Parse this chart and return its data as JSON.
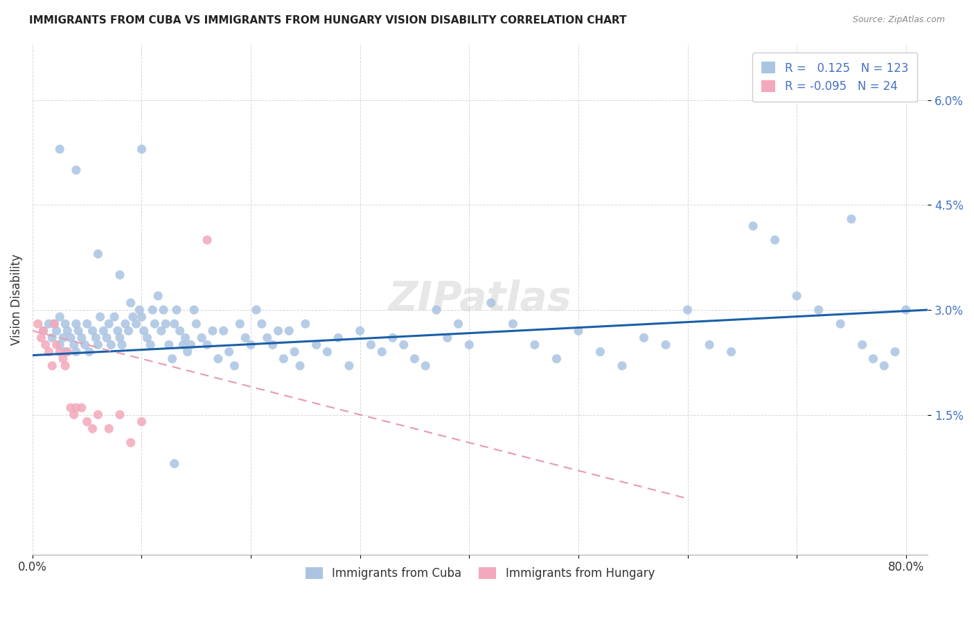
{
  "title": "IMMIGRANTS FROM CUBA VS IMMIGRANTS FROM HUNGARY VISION DISABILITY CORRELATION CHART",
  "source": "Source: ZipAtlas.com",
  "ylabel": "Vision Disability",
  "ytick_labels": [
    "1.5%",
    "3.0%",
    "4.5%",
    "6.0%"
  ],
  "ytick_values": [
    0.015,
    0.03,
    0.045,
    0.06
  ],
  "xlim": [
    0.0,
    0.82
  ],
  "ylim": [
    -0.005,
    0.068
  ],
  "legend_r_cuba": "0.125",
  "legend_n_cuba": "123",
  "legend_r_hungary": "-0.095",
  "legend_n_hungary": "24",
  "cuba_color": "#aac4e2",
  "hungary_color": "#f4a8bb",
  "cuba_line_color": "#1a5fa8",
  "hungary_line_color": "#e899aa",
  "watermark": "ZIPatlas",
  "cuba_scatter_x": [
    0.01,
    0.015,
    0.018,
    0.02,
    0.022,
    0.025,
    0.025,
    0.028,
    0.03,
    0.03,
    0.032,
    0.035,
    0.038,
    0.04,
    0.04,
    0.042,
    0.045,
    0.048,
    0.05,
    0.052,
    0.055,
    0.058,
    0.06,
    0.062,
    0.065,
    0.068,
    0.07,
    0.072,
    0.075,
    0.078,
    0.08,
    0.082,
    0.085,
    0.088,
    0.09,
    0.092,
    0.095,
    0.098,
    0.1,
    0.102,
    0.105,
    0.108,
    0.11,
    0.112,
    0.115,
    0.118,
    0.12,
    0.122,
    0.125,
    0.128,
    0.13,
    0.132,
    0.135,
    0.138,
    0.14,
    0.142,
    0.145,
    0.148,
    0.15,
    0.155,
    0.16,
    0.165,
    0.17,
    0.175,
    0.18,
    0.185,
    0.19,
    0.195,
    0.2,
    0.205,
    0.21,
    0.215,
    0.22,
    0.225,
    0.23,
    0.235,
    0.24,
    0.245,
    0.25,
    0.26,
    0.27,
    0.28,
    0.29,
    0.3,
    0.31,
    0.32,
    0.33,
    0.34,
    0.35,
    0.36,
    0.37,
    0.38,
    0.39,
    0.4,
    0.42,
    0.44,
    0.46,
    0.48,
    0.5,
    0.52,
    0.54,
    0.56,
    0.58,
    0.6,
    0.62,
    0.64,
    0.66,
    0.68,
    0.7,
    0.72,
    0.74,
    0.75,
    0.76,
    0.77,
    0.78,
    0.79,
    0.8,
    0.025,
    0.04,
    0.06,
    0.08,
    0.1,
    0.13
  ],
  "cuba_scatter_y": [
    0.027,
    0.028,
    0.026,
    0.028,
    0.027,
    0.029,
    0.025,
    0.026,
    0.028,
    0.024,
    0.027,
    0.026,
    0.025,
    0.028,
    0.024,
    0.027,
    0.026,
    0.025,
    0.028,
    0.024,
    0.027,
    0.026,
    0.025,
    0.029,
    0.027,
    0.026,
    0.028,
    0.025,
    0.029,
    0.027,
    0.026,
    0.025,
    0.028,
    0.027,
    0.031,
    0.029,
    0.028,
    0.03,
    0.029,
    0.027,
    0.026,
    0.025,
    0.03,
    0.028,
    0.032,
    0.027,
    0.03,
    0.028,
    0.025,
    0.023,
    0.028,
    0.03,
    0.027,
    0.025,
    0.026,
    0.024,
    0.025,
    0.03,
    0.028,
    0.026,
    0.025,
    0.027,
    0.023,
    0.027,
    0.024,
    0.022,
    0.028,
    0.026,
    0.025,
    0.03,
    0.028,
    0.026,
    0.025,
    0.027,
    0.023,
    0.027,
    0.024,
    0.022,
    0.028,
    0.025,
    0.024,
    0.026,
    0.022,
    0.027,
    0.025,
    0.024,
    0.026,
    0.025,
    0.023,
    0.022,
    0.03,
    0.026,
    0.028,
    0.025,
    0.031,
    0.028,
    0.025,
    0.023,
    0.027,
    0.024,
    0.022,
    0.026,
    0.025,
    0.03,
    0.025,
    0.024,
    0.042,
    0.04,
    0.032,
    0.03,
    0.028,
    0.043,
    0.025,
    0.023,
    0.022,
    0.024,
    0.03,
    0.053,
    0.05,
    0.038,
    0.035,
    0.053,
    0.008
  ],
  "hungary_scatter_x": [
    0.005,
    0.008,
    0.01,
    0.012,
    0.015,
    0.018,
    0.02,
    0.022,
    0.025,
    0.028,
    0.03,
    0.032,
    0.035,
    0.038,
    0.04,
    0.045,
    0.05,
    0.055,
    0.06,
    0.07,
    0.08,
    0.09,
    0.1,
    0.16
  ],
  "hungary_scatter_y": [
    0.028,
    0.026,
    0.027,
    0.025,
    0.024,
    0.022,
    0.028,
    0.025,
    0.024,
    0.023,
    0.022,
    0.024,
    0.016,
    0.015,
    0.016,
    0.016,
    0.014,
    0.013,
    0.015,
    0.013,
    0.015,
    0.011,
    0.014,
    0.04
  ],
  "cuba_trend_x": [
    0.0,
    0.82
  ],
  "cuba_trend_y": [
    0.0235,
    0.03
  ],
  "hungary_trend_x": [
    0.0,
    0.6
  ],
  "hungary_trend_y": [
    0.027,
    0.003
  ]
}
